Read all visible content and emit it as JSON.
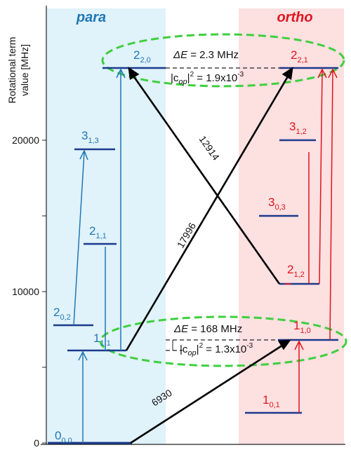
{
  "y_axis": {
    "label_line1": "Rotational term",
    "label_line2": "value  [MHz]",
    "ticks": [
      {
        "value": 0,
        "label": "0"
      },
      {
        "value": 10000,
        "label": "10000"
      },
      {
        "value": 20000,
        "label": "20000"
      }
    ]
  },
  "panels": {
    "para": {
      "title": "para",
      "color": "#1f77b4",
      "bg": "#e0f2fa"
    },
    "ortho": {
      "title": "ortho",
      "color": "#e0141e",
      "bg": "#fde0e0"
    }
  },
  "levels": [
    {
      "id": "p000",
      "main": "0",
      "sub": "0,0",
      "side": "para"
    },
    {
      "id": "p111",
      "main": "1",
      "sub": "1,1",
      "side": "para"
    },
    {
      "id": "p202",
      "main": "2",
      "sub": "0,2",
      "side": "para"
    },
    {
      "id": "p211",
      "main": "2",
      "sub": "1,1",
      "side": "para"
    },
    {
      "id": "p313",
      "main": "3",
      "sub": "1,3",
      "side": "para"
    },
    {
      "id": "p220",
      "main": "2",
      "sub": "2,0",
      "side": "para"
    },
    {
      "id": "o101",
      "main": "1",
      "sub": "0,1",
      "side": "ortho"
    },
    {
      "id": "o110",
      "main": "1",
      "sub": "1,0",
      "side": "ortho"
    },
    {
      "id": "o212",
      "main": "2",
      "sub": "1,2",
      "side": "ortho"
    },
    {
      "id": "o303",
      "main": "3",
      "sub": "0,3",
      "side": "ortho"
    },
    {
      "id": "o312",
      "main": "3",
      "sub": "1,2",
      "side": "ortho"
    },
    {
      "id": "o221",
      "main": "2",
      "sub": "2,1",
      "side": "ortho"
    }
  ],
  "transitions": [
    {
      "label": "6930"
    },
    {
      "label": "17996"
    },
    {
      "label": "12914"
    }
  ],
  "annotations": {
    "upper_delta": {
      "prefix": "ΔE",
      "text": " = 2.3 MHz"
    },
    "upper_c": {
      "pre": "|c",
      "sub": "op",
      "mid": "|",
      "sup": "2",
      "post": " = 1.9x10",
      "exp": "-3"
    },
    "lower_delta": {
      "prefix": "ΔE",
      "text": " = 168 MHz"
    },
    "lower_c": {
      "pre": "|c",
      "sub": "op",
      "mid": "|",
      "sup": "2",
      "post": " = 1.3x10",
      "exp": "-3"
    }
  },
  "colors": {
    "para_arrow": "#1f77b4",
    "ortho_arrow": "#e0141e",
    "level_line": "#1a3a8c",
    "ellipse": "#3ecf3e"
  }
}
